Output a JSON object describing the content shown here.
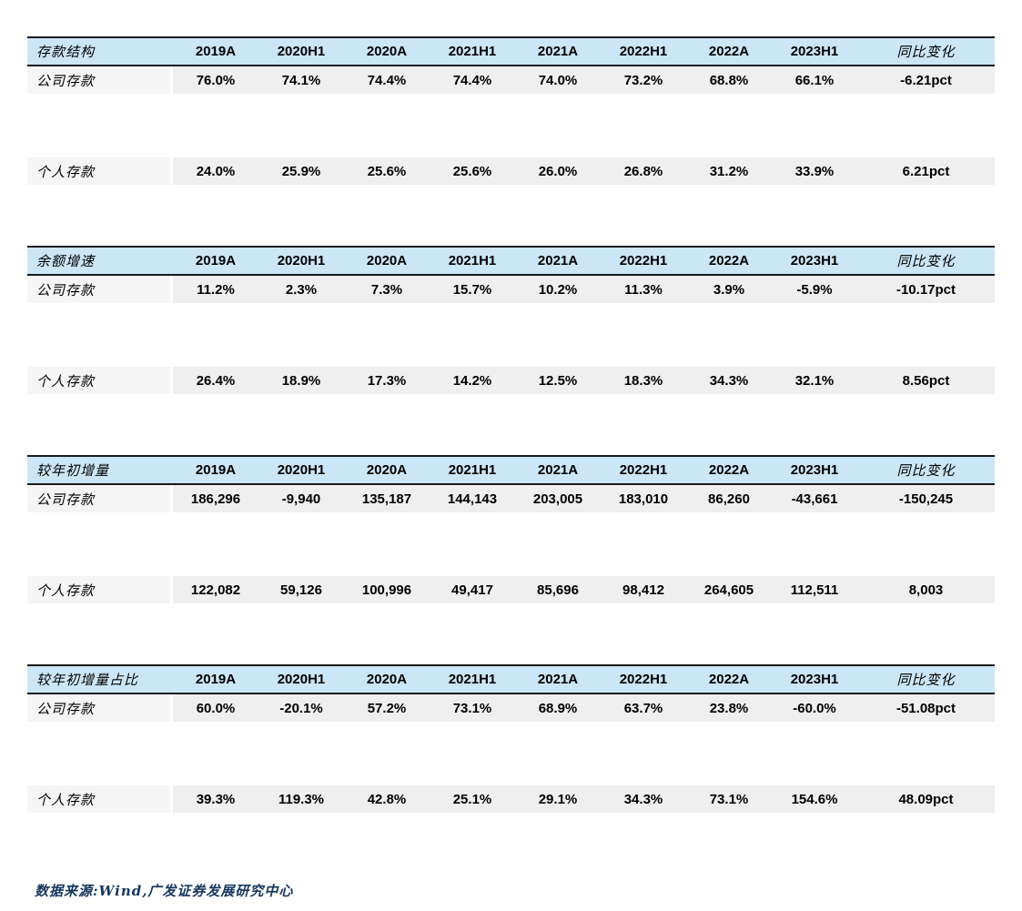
{
  "colors": {
    "header_bg": "#cbe6f6",
    "row_bg": "#efefef",
    "row_label_bg": "#f5f5f5",
    "rule_color": "#1a1a1a",
    "source_text_color": "#17375e",
    "page_bg": "#ffffff"
  },
  "columns": [
    "2019A",
    "2020H1",
    "2020A",
    "2021H1",
    "2021A",
    "2022H1",
    "2022A",
    "2023H1",
    "同比变化"
  ],
  "tables": [
    {
      "title": "存款结构",
      "rows": [
        {
          "label": "公司存款",
          "values": [
            "76.0%",
            "74.1%",
            "74.4%",
            "74.4%",
            "74.0%",
            "73.2%",
            "68.8%",
            "66.1%",
            "-6.21pct"
          ]
        },
        {
          "label": "个人存款",
          "values": [
            "24.0%",
            "25.9%",
            "25.6%",
            "25.6%",
            "26.0%",
            "26.8%",
            "31.2%",
            "33.9%",
            "6.21pct"
          ]
        }
      ]
    },
    {
      "title": "余额增速",
      "rows": [
        {
          "label": "公司存款",
          "values": [
            "11.2%",
            "2.3%",
            "7.3%",
            "15.7%",
            "10.2%",
            "11.3%",
            "3.9%",
            "-5.9%",
            "-10.17pct"
          ]
        },
        {
          "label": "个人存款",
          "values": [
            "26.4%",
            "18.9%",
            "17.3%",
            "14.2%",
            "12.5%",
            "18.3%",
            "34.3%",
            "32.1%",
            "8.56pct"
          ]
        }
      ]
    },
    {
      "title": "较年初增量",
      "rows": [
        {
          "label": "公司存款",
          "values": [
            "186,296",
            "-9,940",
            "135,187",
            "144,143",
            "203,005",
            "183,010",
            "86,260",
            "-43,661",
            "-150,245"
          ]
        },
        {
          "label": "个人存款",
          "values": [
            "122,082",
            "59,126",
            "100,996",
            "49,417",
            "85,696",
            "98,412",
            "264,605",
            "112,511",
            "8,003"
          ]
        }
      ]
    },
    {
      "title": "较年初增量占比",
      "rows": [
        {
          "label": "公司存款",
          "values": [
            "60.0%",
            "-20.1%",
            "57.2%",
            "73.1%",
            "68.9%",
            "63.7%",
            "23.8%",
            "-60.0%",
            "-51.08pct"
          ]
        },
        {
          "label": "个人存款",
          "values": [
            "39.3%",
            "119.3%",
            "42.8%",
            "25.1%",
            "29.1%",
            "34.3%",
            "73.1%",
            "154.6%",
            "48.09pct"
          ]
        }
      ]
    }
  ],
  "footer": {
    "source_text": "数据来源:Wind,广发证券发展研究中心"
  }
}
